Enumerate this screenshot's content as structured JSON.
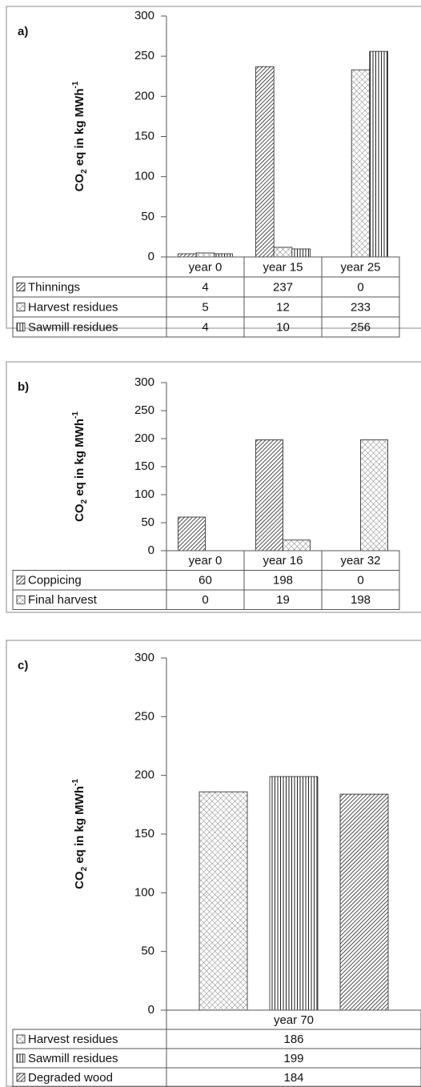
{
  "chart_data": [
    {
      "type": "bar",
      "panel_label": "a)",
      "y_label": [
        "CO",
        "2",
        " eq in kg MWh",
        "-1"
      ],
      "categories": [
        "year 0",
        "year 15",
        "year 25"
      ],
      "series": [
        {
          "name": "Thinnings",
          "pattern": "dense-diagonal",
          "values": [
            4,
            237,
            0
          ]
        },
        {
          "name": "Harvest residues",
          "pattern": "crosshatch",
          "values": [
            5,
            12,
            233
          ]
        },
        {
          "name": "Sawmill residues",
          "pattern": "vertical",
          "values": [
            4,
            10,
            256
          ]
        }
      ],
      "ylim": [
        0,
        300
      ],
      "yticks": [
        0,
        50,
        100,
        150,
        200,
        250,
        300
      ]
    },
    {
      "type": "bar",
      "panel_label": "b)",
      "y_label": [
        "CO",
        "2",
        " eq in kg MWh",
        "-1"
      ],
      "categories": [
        "year 0",
        "year 16",
        "year 32"
      ],
      "series": [
        {
          "name": "Coppicing",
          "pattern": "dense-diagonal",
          "values": [
            60,
            198,
            0
          ]
        },
        {
          "name": "Final harvest",
          "pattern": "crosshatch",
          "values": [
            0,
            19,
            198
          ]
        }
      ],
      "ylim": [
        0,
        300
      ],
      "yticks": [
        0,
        50,
        100,
        150,
        200,
        250,
        300
      ]
    },
    {
      "type": "bar",
      "panel_label": "c)",
      "y_label": [
        "CO",
        "2",
        " eq in kg MWh",
        "-1"
      ],
      "categories": [
        "year 70"
      ],
      "series": [
        {
          "name": "Harvest residues",
          "pattern": "crosshatch",
          "values": [
            186
          ]
        },
        {
          "name": "Sawmill residues",
          "pattern": "vertical",
          "values": [
            199
          ]
        },
        {
          "name": "Degraded wood",
          "pattern": "dense-diagonal",
          "values": [
            184
          ]
        }
      ],
      "ylim": [
        0,
        300
      ],
      "yticks": [
        0,
        50,
        100,
        150,
        200,
        250,
        300
      ]
    }
  ]
}
